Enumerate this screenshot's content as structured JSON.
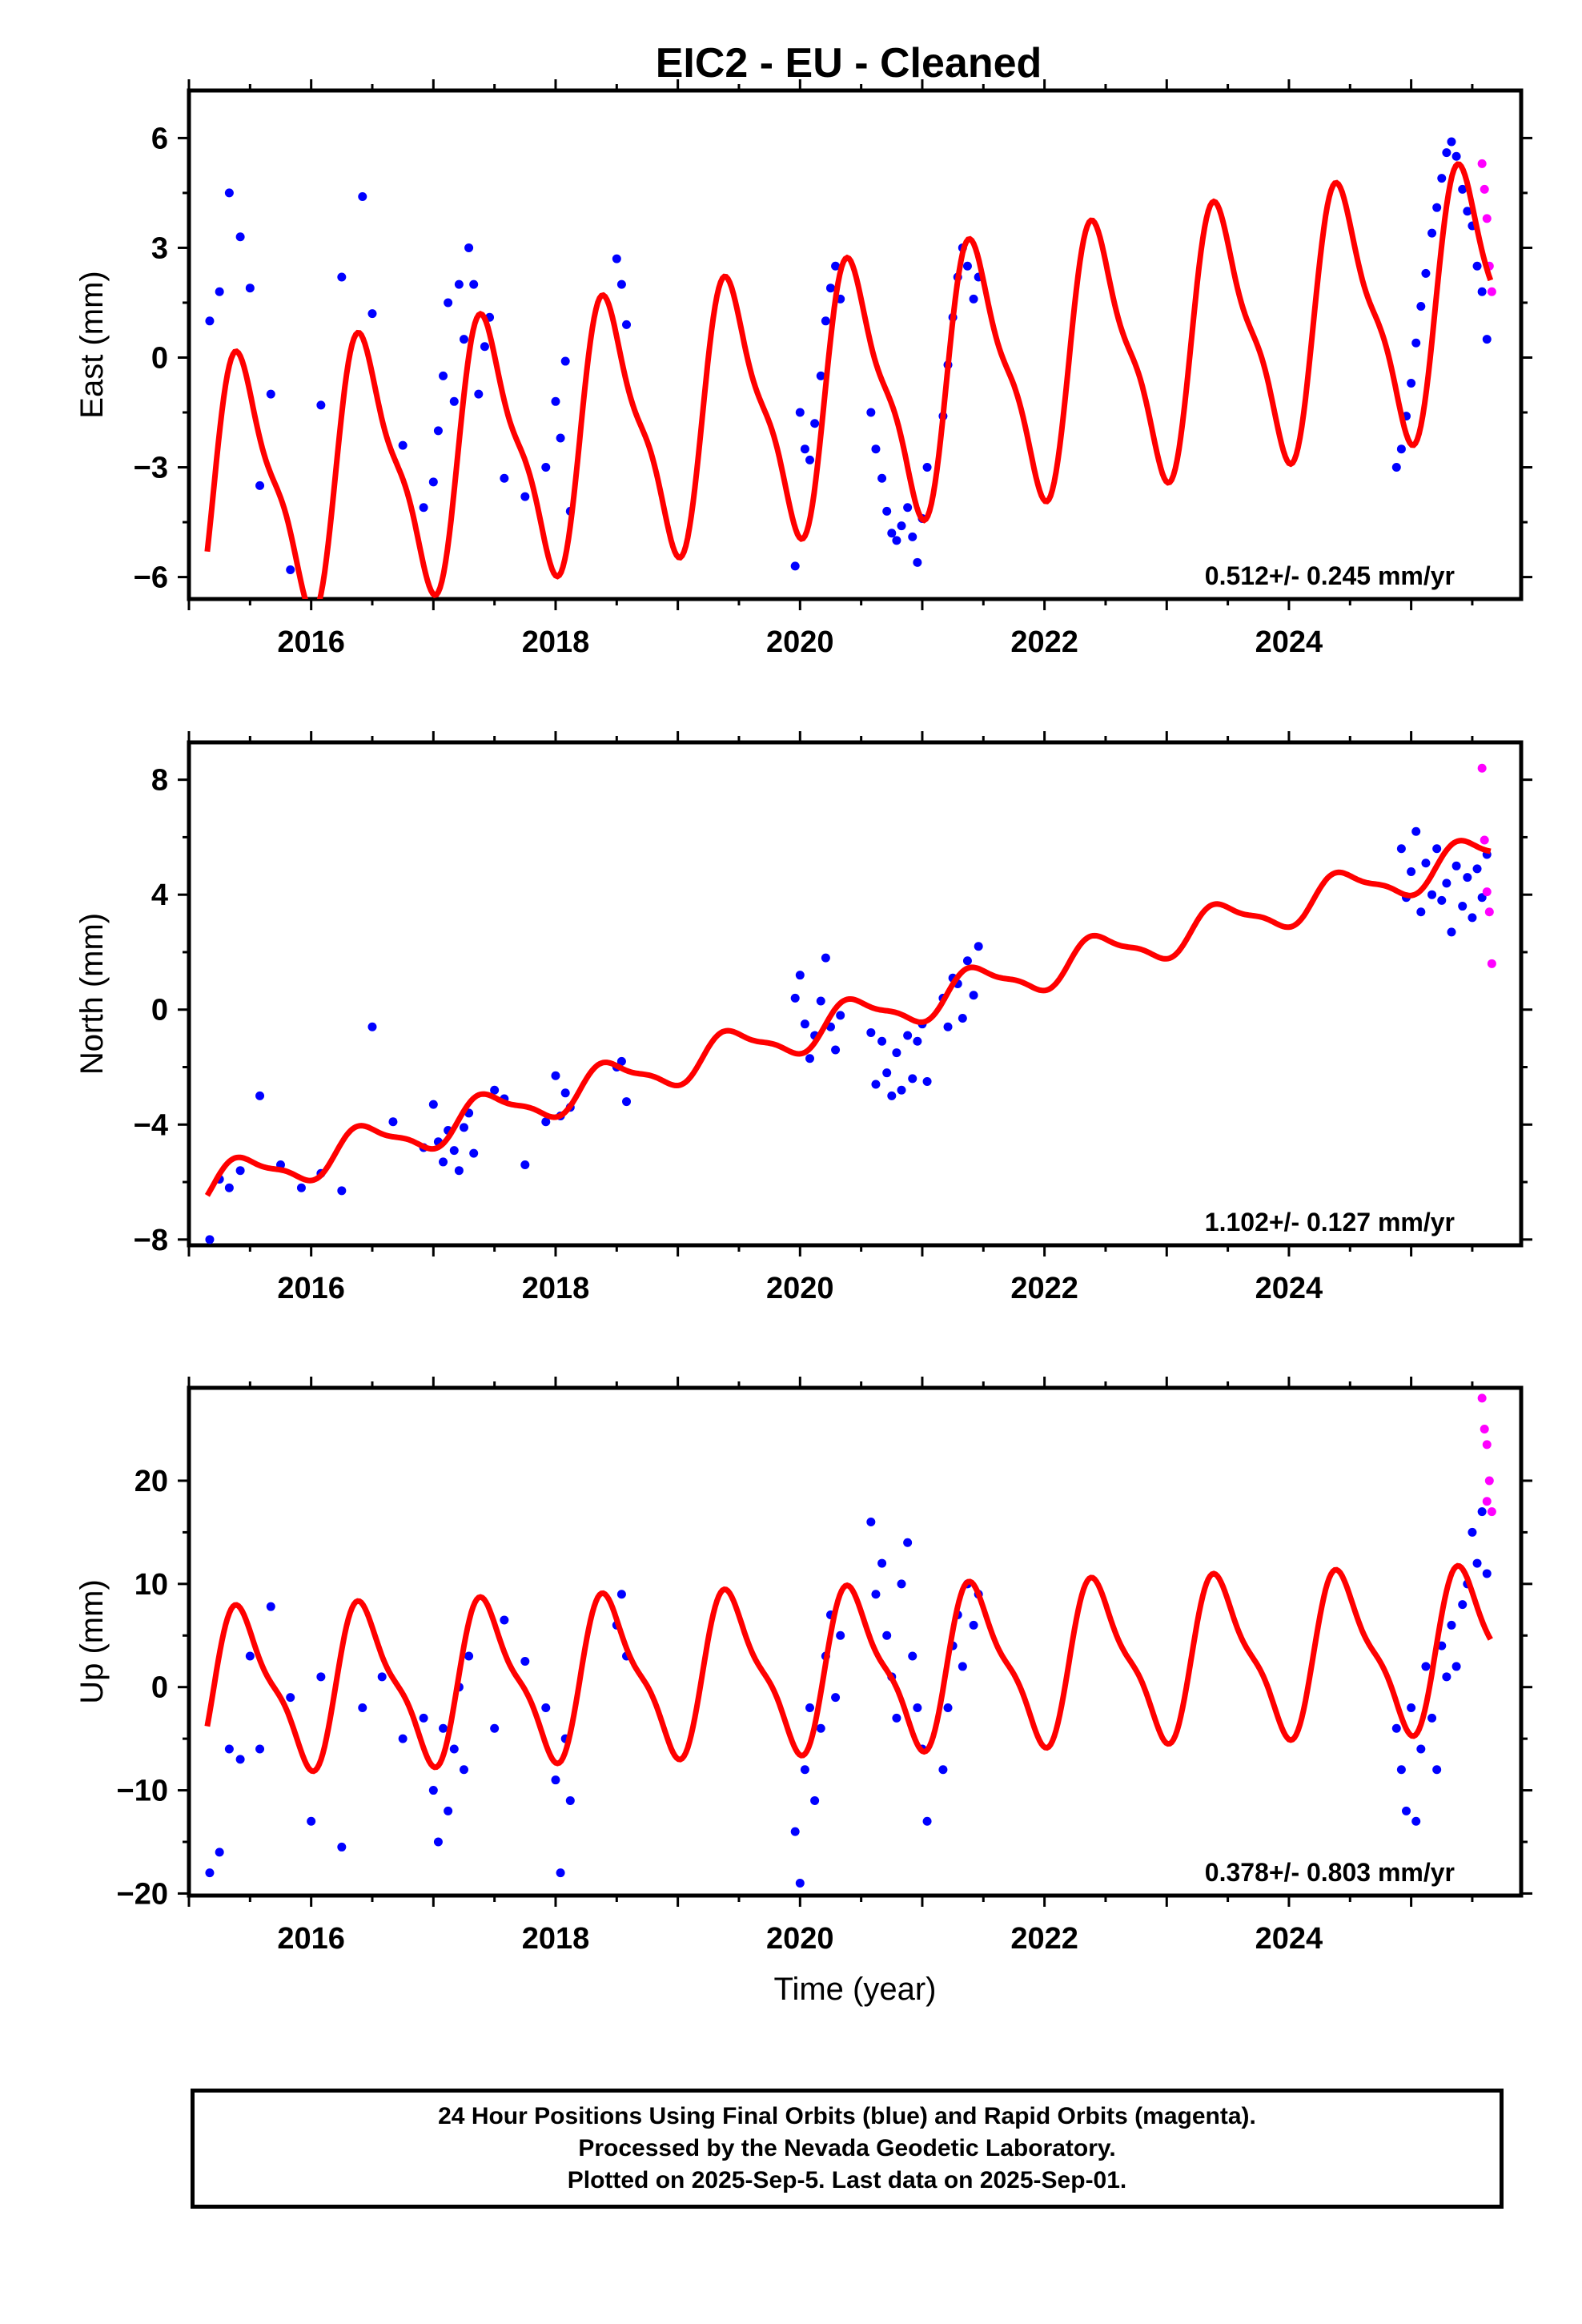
{
  "title": "EIC2  - EU - Cleaned",
  "chart_data": [
    {
      "type": "scatter",
      "panel": "east",
      "ylabel": "East (mm)",
      "xlabel": "",
      "xlim": [
        2015.0,
        2025.9
      ],
      "ylim": [
        -6.6,
        7.3
      ],
      "yticks": [
        6,
        3,
        0,
        -3,
        -6
      ],
      "yticklabels": [
        "6",
        "3",
        "0",
        "−3",
        "−6"
      ],
      "xticks": [
        2016,
        2018,
        2020,
        2022,
        2024
      ],
      "xticklabels": [
        "2016",
        "2018",
        "2020",
        "2022",
        "2024"
      ],
      "rate": "0.512+/- 0.245 mm/yr",
      "series": [
        {
          "name": "Final Orbits (blue)",
          "color": "#0000ff",
          "x": [
            2015.17,
            2015.25,
            2015.33,
            2015.42,
            2015.5,
            2015.58,
            2015.67,
            2015.83,
            2016.08,
            2016.25,
            2016.42,
            2016.5,
            2016.75,
            2016.92,
            2017.0,
            2017.04,
            2017.08,
            2017.12,
            2017.17,
            2017.21,
            2017.25,
            2017.29,
            2017.33,
            2017.37,
            2017.42,
            2017.46,
            2017.58,
            2017.75,
            2017.92,
            2018.0,
            2018.04,
            2018.08,
            2018.12,
            2018.5,
            2018.54,
            2018.58,
            2019.96,
            2020.0,
            2020.04,
            2020.08,
            2020.12,
            2020.17,
            2020.21,
            2020.25,
            2020.29,
            2020.33,
            2020.58,
            2020.62,
            2020.67,
            2020.71,
            2020.75,
            2020.79,
            2020.83,
            2020.88,
            2020.92,
            2020.96,
            2021.0,
            2021.04,
            2021.17,
            2021.21,
            2021.25,
            2021.29,
            2021.33,
            2021.37,
            2021.42,
            2021.46,
            2024.88,
            2024.92,
            2024.96,
            2025.0,
            2025.04,
            2025.08,
            2025.12,
            2025.17,
            2025.21,
            2025.25,
            2025.29,
            2025.33,
            2025.37,
            2025.42,
            2025.46,
            2025.5,
            2025.54,
            2025.58,
            2025.62
          ],
          "y": [
            1.0,
            1.8,
            4.5,
            3.3,
            1.9,
            -3.5,
            -1.0,
            -5.8,
            -1.3,
            2.2,
            4.4,
            1.2,
            -2.4,
            -4.1,
            -3.4,
            -2.0,
            -0.5,
            1.5,
            -1.2,
            2.0,
            0.5,
            3.0,
            2.0,
            -1.0,
            0.3,
            1.1,
            -3.3,
            -3.8,
            -3.0,
            -1.2,
            -2.2,
            -0.1,
            -4.2,
            2.7,
            2.0,
            0.9,
            -5.7,
            -1.5,
            -2.5,
            -2.8,
            -1.8,
            -0.5,
            1.0,
            1.9,
            2.5,
            1.6,
            -1.5,
            -2.5,
            -3.3,
            -4.2,
            -4.8,
            -5.0,
            -4.6,
            -4.1,
            -4.9,
            -5.6,
            -4.4,
            -3.0,
            -1.6,
            -0.2,
            1.1,
            2.2,
            3.0,
            2.5,
            1.6,
            2.2,
            -3.0,
            -2.5,
            -1.6,
            -0.7,
            0.4,
            1.4,
            2.3,
            3.4,
            4.1,
            4.9,
            5.6,
            5.9,
            5.5,
            4.6,
            4.0,
            3.6,
            2.5,
            1.8,
            0.5
          ]
        },
        {
          "name": "Rapid Orbits (magenta)",
          "color": "#ff00ff",
          "x": [
            2025.58,
            2025.6,
            2025.62,
            2025.64,
            2025.66
          ],
          "y": [
            5.3,
            4.6,
            3.8,
            2.5,
            1.8
          ]
        }
      ],
      "fit": {
        "color": "#ff0000",
        "mean": -3.7,
        "rate": 0.512,
        "amp": 3.3
      }
    },
    {
      "type": "scatter",
      "panel": "north",
      "ylabel": "North (mm)",
      "xlabel": "",
      "xlim": [
        2015.0,
        2025.9
      ],
      "ylim": [
        -8.2,
        9.3
      ],
      "yticks": [
        8,
        4,
        0,
        -4,
        -8
      ],
      "yticklabels": [
        "8",
        "4",
        "0",
        "−4",
        "−8"
      ],
      "xticks": [
        2016,
        2018,
        2020,
        2022,
        2024
      ],
      "xticklabels": [
        "2016",
        "2018",
        "2020",
        "2022",
        "2024"
      ],
      "rate": "1.102+/- 0.127 mm/yr",
      "series": [
        {
          "name": "Final Orbits (blue)",
          "color": "#0000ff",
          "x": [
            2015.17,
            2015.25,
            2015.33,
            2015.42,
            2015.58,
            2015.75,
            2015.92,
            2016.08,
            2016.25,
            2016.5,
            2016.67,
            2016.92,
            2017.0,
            2017.04,
            2017.08,
            2017.12,
            2017.17,
            2017.21,
            2017.25,
            2017.29,
            2017.33,
            2017.5,
            2017.58,
            2017.75,
            2017.92,
            2018.0,
            2018.04,
            2018.08,
            2018.12,
            2018.5,
            2018.54,
            2018.58,
            2019.96,
            2020.0,
            2020.04,
            2020.08,
            2020.12,
            2020.17,
            2020.21,
            2020.25,
            2020.29,
            2020.33,
            2020.58,
            2020.62,
            2020.67,
            2020.71,
            2020.75,
            2020.79,
            2020.83,
            2020.88,
            2020.92,
            2020.96,
            2021.0,
            2021.04,
            2021.17,
            2021.21,
            2021.25,
            2021.29,
            2021.33,
            2021.37,
            2021.42,
            2021.46,
            2024.92,
            2024.96,
            2025.0,
            2025.04,
            2025.08,
            2025.12,
            2025.17,
            2025.21,
            2025.25,
            2025.29,
            2025.33,
            2025.37,
            2025.42,
            2025.46,
            2025.5,
            2025.54,
            2025.58,
            2025.62
          ],
          "y": [
            -8.0,
            -5.9,
            -6.2,
            -5.6,
            -3.0,
            -5.4,
            -6.2,
            -5.7,
            -6.3,
            -0.6,
            -3.9,
            -4.8,
            -3.3,
            -4.6,
            -5.3,
            -4.2,
            -4.9,
            -5.6,
            -4.1,
            -3.6,
            -5.0,
            -2.8,
            -3.1,
            -5.4,
            -3.9,
            -2.3,
            -3.7,
            -2.9,
            -3.4,
            -2.0,
            -1.8,
            -3.2,
            0.4,
            1.2,
            -0.5,
            -1.7,
            -0.9,
            0.3,
            1.8,
            -0.6,
            -1.4,
            -0.2,
            -0.8,
            -2.6,
            -1.1,
            -2.2,
            -3.0,
            -1.5,
            -2.8,
            -0.9,
            -2.4,
            -1.1,
            -0.5,
            -2.5,
            0.4,
            -0.6,
            1.1,
            0.9,
            -0.3,
            1.7,
            0.5,
            2.2,
            5.6,
            3.9,
            4.8,
            6.2,
            3.4,
            5.1,
            4.0,
            5.6,
            3.8,
            4.4,
            2.7,
            5.0,
            3.6,
            4.6,
            3.2,
            4.9,
            3.9,
            5.4
          ]
        },
        {
          "name": "Rapid Orbits (magenta)",
          "color": "#ff00ff",
          "x": [
            2025.58,
            2025.6,
            2025.62,
            2025.64,
            2025.66
          ],
          "y": [
            8.4,
            5.9,
            4.1,
            3.4,
            1.6
          ]
        }
      ],
      "fit": {
        "color": "#ff0000",
        "mean": -6.15,
        "rate": 1.102,
        "amp": 0.65
      }
    },
    {
      "type": "scatter",
      "panel": "up",
      "ylabel": "Up (mm)",
      "xlabel": "Time (year)",
      "xlim": [
        2015.0,
        2025.9
      ],
      "ylim": [
        -20.2,
        29.0
      ],
      "yticks": [
        20,
        10,
        0,
        -10,
        -20
      ],
      "yticklabels": [
        "20",
        "10",
        "0",
        "−10",
        "−20"
      ],
      "xticks": [
        2016,
        2018,
        2020,
        2022,
        2024
      ],
      "xticklabels": [
        "2016",
        "2018",
        "2020",
        "2022",
        "2024"
      ],
      "rate": "0.378+/- 0.803 mm/yr",
      "series": [
        {
          "name": "Final Orbits (blue)",
          "color": "#0000ff",
          "x": [
            2015.17,
            2015.25,
            2015.33,
            2015.42,
            2015.5,
            2015.58,
            2015.67,
            2015.83,
            2016.0,
            2016.08,
            2016.25,
            2016.42,
            2016.58,
            2016.75,
            2016.92,
            2017.0,
            2017.04,
            2017.08,
            2017.12,
            2017.17,
            2017.21,
            2017.25,
            2017.29,
            2017.5,
            2017.58,
            2017.75,
            2017.92,
            2018.0,
            2018.04,
            2018.08,
            2018.12,
            2018.5,
            2018.54,
            2018.58,
            2019.96,
            2020.0,
            2020.04,
            2020.08,
            2020.12,
            2020.17,
            2020.21,
            2020.25,
            2020.29,
            2020.33,
            2020.58,
            2020.62,
            2020.67,
            2020.71,
            2020.75,
            2020.79,
            2020.83,
            2020.88,
            2020.92,
            2020.96,
            2021.0,
            2021.04,
            2021.17,
            2021.21,
            2021.25,
            2021.29,
            2021.33,
            2021.37,
            2021.42,
            2021.46,
            2024.88,
            2024.92,
            2024.96,
            2025.0,
            2025.04,
            2025.08,
            2025.12,
            2025.17,
            2025.21,
            2025.25,
            2025.29,
            2025.33,
            2025.37,
            2025.42,
            2025.46,
            2025.5,
            2025.54,
            2025.58,
            2025.62
          ],
          "y": [
            -18.0,
            -16.0,
            -6.0,
            -7.0,
            3.0,
            -6.0,
            7.8,
            -1.0,
            -13.0,
            1.0,
            -15.5,
            -2.0,
            1.0,
            -5.0,
            -3.0,
            -10.0,
            -15.0,
            -4.0,
            -12.0,
            -6.0,
            0.0,
            -8.0,
            3.0,
            -4.0,
            6.5,
            2.5,
            -2.0,
            -9.0,
            -18.0,
            -5.0,
            -11.0,
            6.0,
            9.0,
            3.0,
            -14.0,
            -19.0,
            -8.0,
            -2.0,
            -11.0,
            -4.0,
            3.0,
            7.0,
            -1.0,
            5.0,
            16.0,
            9.0,
            12.0,
            5.0,
            1.0,
            -3.0,
            10.0,
            14.0,
            3.0,
            -2.0,
            -6.0,
            -13.0,
            -8.0,
            -2.0,
            4.0,
            7.0,
            2.0,
            10.0,
            6.0,
            9.0,
            -4.0,
            -8.0,
            -12.0,
            -2.0,
            -13.0,
            -6.0,
            2.0,
            -3.0,
            -8.0,
            4.0,
            1.0,
            6.0,
            2.0,
            8.0,
            10.0,
            15.0,
            12.0,
            17.0,
            11.0
          ]
        },
        {
          "name": "Rapid Orbits (magenta)",
          "color": "#ff00ff",
          "x": [
            2025.58,
            2025.6,
            2025.62,
            2025.64,
            2025.66,
            2025.62
          ],
          "y": [
            28.0,
            25.0,
            23.5,
            20.0,
            17.0,
            18.0
          ]
        }
      ],
      "fit": {
        "color": "#ff0000",
        "mean": -0.3,
        "rate": 0.378,
        "amp": 7.2
      }
    }
  ],
  "footer": {
    "line1": "24 Hour Positions Using Final Orbits (blue) and Rapid Orbits (magenta).",
    "line2": "Processed by the Nevada Geodetic Laboratory.",
    "line3": "Plotted on 2025-Sep-5. Last data on 2025-Sep-01."
  }
}
